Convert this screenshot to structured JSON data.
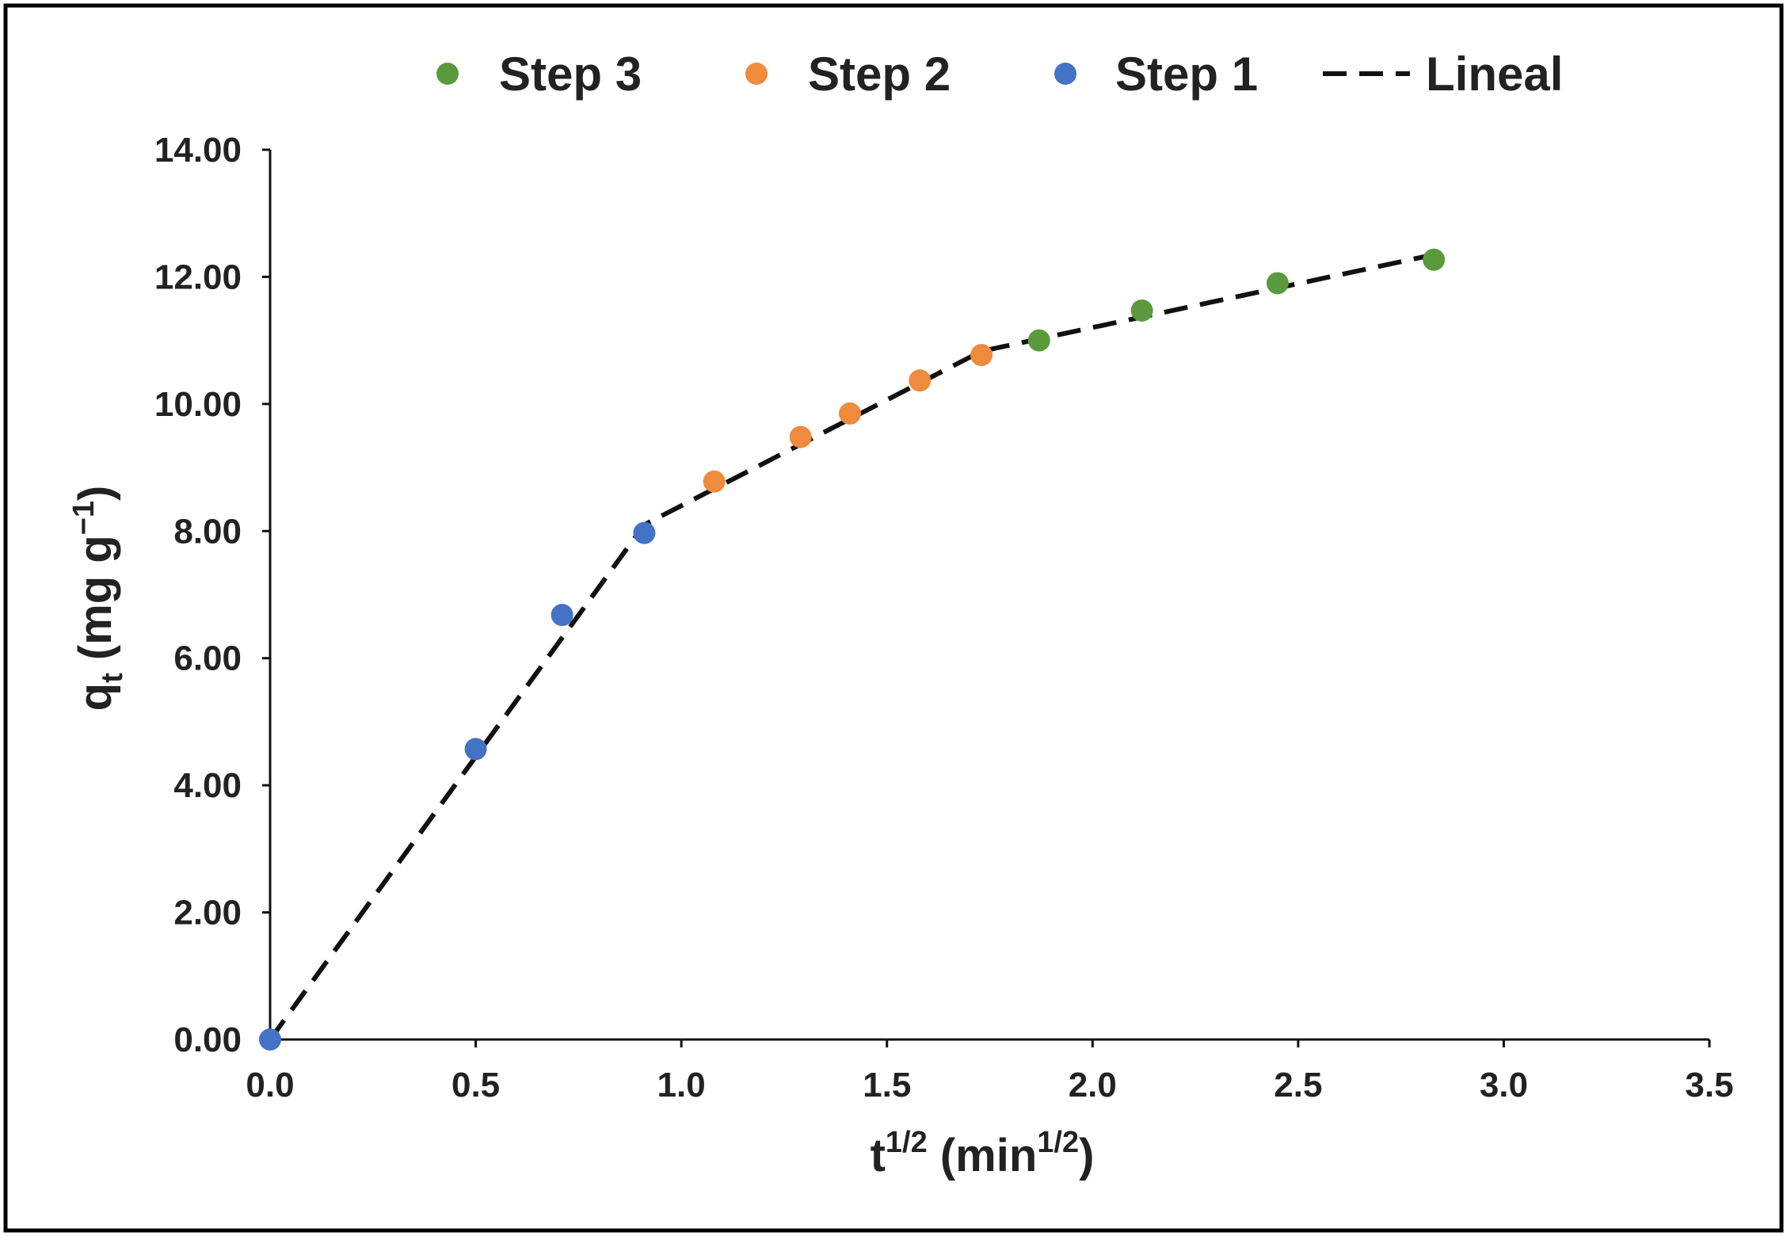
{
  "chart_data": {
    "type": "scatter",
    "xlabel": {
      "base": "t",
      "sup": "1/2",
      "paren_open": " (min",
      "unit_sup": "1/2",
      "paren_close": ")"
    },
    "ylabel": {
      "base": "q",
      "sub": "t",
      "rest": " (mg g",
      "sup": "−1",
      "close": ")"
    },
    "xlim": [
      0,
      3.5
    ],
    "ylim": [
      0,
      14
    ],
    "x_ticks": [
      "0.0",
      "0.5",
      "1.0",
      "1.5",
      "2.0",
      "2.5",
      "3.0",
      "3.5"
    ],
    "y_ticks": [
      "0.00",
      "2.00",
      "4.00",
      "6.00",
      "8.00",
      "10.00",
      "12.00",
      "14.00"
    ],
    "grid": false,
    "legend_position": "top",
    "series": [
      {
        "name": "Step 3",
        "color": "#5b9a3c",
        "marker": "circle",
        "points": [
          [
            1.87,
            11.0
          ],
          [
            2.12,
            11.47
          ],
          [
            2.45,
            11.9
          ],
          [
            2.83,
            12.27
          ]
        ]
      },
      {
        "name": "Step 2",
        "color": "#f08a3c",
        "marker": "circle",
        "points": [
          [
            1.08,
            8.78
          ],
          [
            1.29,
            9.48
          ],
          [
            1.41,
            9.85
          ],
          [
            1.58,
            10.37
          ],
          [
            1.73,
            10.77
          ]
        ]
      },
      {
        "name": "Step 1",
        "color": "#4472c4",
        "marker": "circle",
        "points": [
          [
            0.0,
            0.0
          ],
          [
            0.5,
            4.57
          ],
          [
            0.71,
            6.68
          ],
          [
            0.91,
            7.97
          ]
        ]
      },
      {
        "name": "Lineal",
        "color": "#111111",
        "marker": "dashed-line",
        "points": [
          [
            0.0,
            0.0
          ],
          [
            0.91,
            8.1
          ],
          [
            1.73,
            10.83
          ],
          [
            2.83,
            12.35
          ]
        ]
      }
    ]
  }
}
